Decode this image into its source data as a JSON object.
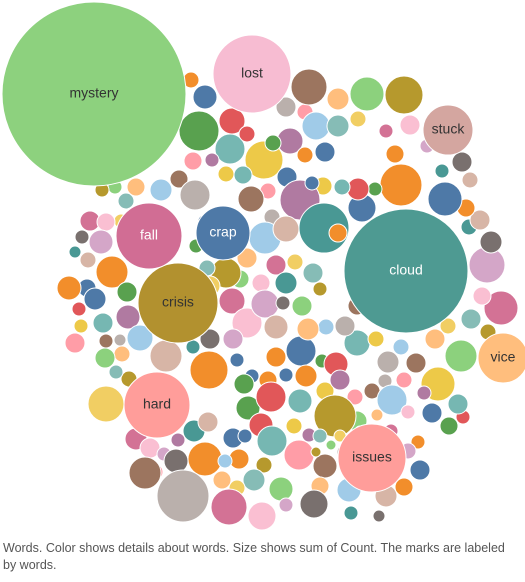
{
  "caption": "Words.  Color shows details about words.  Size shows sum of Count.  The marks are labeled by words.",
  "chart_data": {
    "type": "packed-bubble",
    "labeled_words": [
      {
        "word": "mystery",
        "color": "#8dd17e"
      },
      {
        "word": "cloud",
        "color": "#4e9a92"
      },
      {
        "word": "crisis",
        "color": "#b2912f"
      },
      {
        "word": "lost",
        "color": "#f7bcd2"
      },
      {
        "word": "issues",
        "color": "#ff9d9a"
      },
      {
        "word": "fall",
        "color": "#d16d94"
      },
      {
        "word": "hard",
        "color": "#ff9d9a"
      },
      {
        "word": "crap",
        "color": "#4e79a7"
      },
      {
        "word": "vice",
        "color": "#ffbe7d"
      },
      {
        "word": "stuck",
        "color": "#d4a6a0"
      }
    ]
  }
}
